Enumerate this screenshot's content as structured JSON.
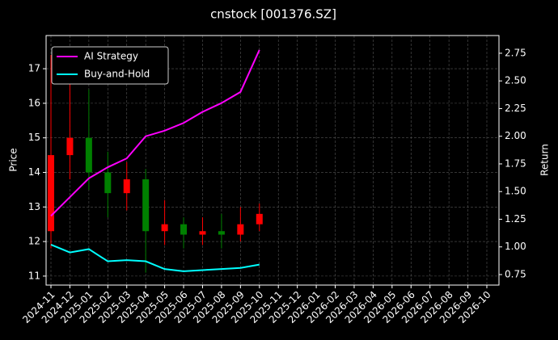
{
  "chart_data": {
    "type": "candlestick",
    "title": "cnstock [001376.SZ]",
    "ylabel": "Price",
    "y2label": "Return",
    "x": [
      "2024-11",
      "2024-12",
      "2025-01",
      "2025-02",
      "2025-03",
      "2025-04",
      "2025-05",
      "2025-06",
      "2025-07",
      "2025-08",
      "2025-09",
      "2025-10"
    ],
    "open": [
      12.3,
      14.5,
      15.0,
      14.0,
      13.4,
      13.8,
      12.3,
      12.5,
      12.2,
      12.3,
      12.2,
      12.5
    ],
    "high": [
      17.4,
      16.6,
      16.4,
      14.6,
      14.3,
      14.1,
      13.2,
      12.7,
      12.7,
      12.8,
      13.0,
      13.1
    ],
    "low": [
      11.8,
      13.8,
      13.5,
      12.7,
      12.9,
      11.1,
      11.9,
      11.8,
      11.9,
      11.8,
      12.0,
      12.3
    ],
    "close": [
      14.5,
      15.0,
      14.0,
      13.4,
      13.8,
      12.3,
      12.5,
      12.2,
      12.3,
      12.2,
      12.5,
      12.8
    ],
    "up_color": "#ff0000",
    "down_color": "#008000",
    "series": [
      {
        "name": "AI Strategy",
        "color": "#ff00ff",
        "axis": "y2",
        "values": [
          1.28,
          1.45,
          1.62,
          1.72,
          1.8,
          2.0,
          2.05,
          2.12,
          2.22,
          2.3,
          2.4,
          2.78
        ]
      },
      {
        "name": "Buy-and-Hold",
        "color": "#00ffff",
        "axis": "y2",
        "values": [
          1.02,
          0.95,
          0.98,
          0.87,
          0.88,
          0.87,
          0.8,
          0.78,
          0.79,
          0.8,
          0.81,
          0.84
        ]
      }
    ],
    "xlim": [
      "2024-11",
      "2026-10"
    ],
    "xticks": [
      "2024-11",
      "2024-12",
      "2025-01",
      "2025-02",
      "2025-03",
      "2025-04",
      "2025-05",
      "2025-06",
      "2025-07",
      "2025-08",
      "2025-09",
      "2025-10",
      "2025-11",
      "2025-12",
      "2026-01",
      "2026-02",
      "2026-03",
      "2026-04",
      "2026-05",
      "2026-06",
      "2026-07",
      "2026-08",
      "2026-09",
      "2026-10"
    ],
    "ylim": [
      10.74,
      17.96
    ],
    "yticks": [
      11,
      12,
      13,
      14,
      15,
      16,
      17
    ],
    "y2lim": [
      0.655,
      2.91
    ],
    "y2ticks": [
      0.75,
      {
        "value": 1.0,
        "label": "1.00"
      },
      1.25,
      {
        "value": 1.5,
        "label": "1.50"
      },
      1.75,
      {
        "value": 2.0,
        "label": "2.00"
      },
      2.25,
      {
        "value": 2.5,
        "label": "2.50"
      },
      2.75
    ],
    "grid": true,
    "legend": "upper left"
  }
}
